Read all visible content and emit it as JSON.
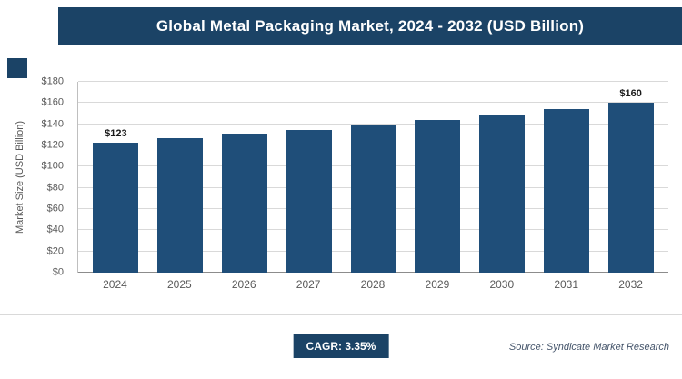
{
  "title": "Global Metal Packaging Market, 2024 - 2032 (USD Billion)",
  "chart_data": {
    "type": "bar",
    "title": "Global Metal Packaging Market, 2024 - 2032 (USD Billion)",
    "categories": [
      "2024",
      "2025",
      "2026",
      "2027",
      "2028",
      "2029",
      "2030",
      "2031",
      "2032"
    ],
    "values": [
      123,
      127,
      131,
      135,
      140,
      144,
      149,
      154,
      160
    ],
    "data_labels": [
      "$123",
      "",
      "",
      "",
      "",
      "",
      "",
      "",
      "$160"
    ],
    "xlabel": "",
    "ylabel": "Market Size (USD Billion)",
    "ylim": [
      0,
      180
    ],
    "yticks": [
      0,
      20,
      40,
      60,
      80,
      100,
      120,
      140,
      160,
      180
    ],
    "ytick_prefix": "$",
    "grid": true,
    "legend": "none"
  },
  "footer": {
    "cagr_label": "CAGR: 3.35%",
    "source": "Source: Syndicate Market Research"
  },
  "colors": {
    "title_band_bg": "#1B4366",
    "bar_fill": "#1F4E79",
    "gridline": "#D9D9D9",
    "axis_text": "#595959",
    "source_text": "#44546A"
  }
}
